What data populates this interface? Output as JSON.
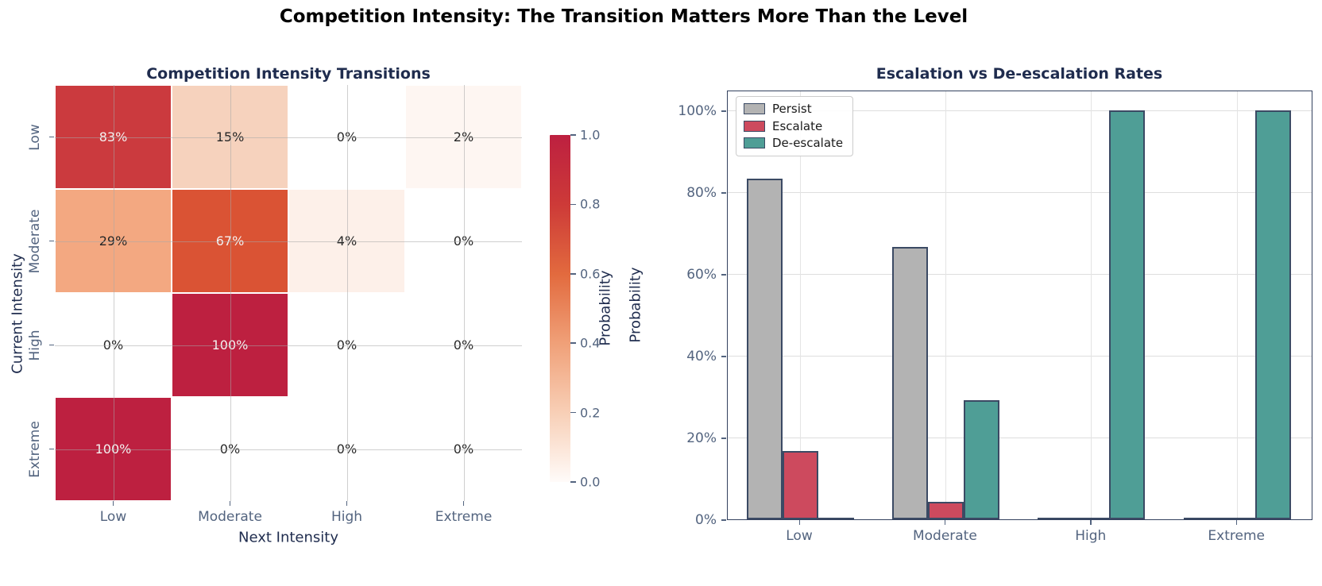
{
  "figure": {
    "title": "Competition Intensity: The Transition Matters More Than the Level"
  },
  "chart_data": [
    {
      "type": "heatmap",
      "title": "Competition Intensity Transitions",
      "xlabel": "Next Intensity",
      "ylabel": "Current Intensity",
      "x_categories": [
        "Low",
        "Moderate",
        "High",
        "Extreme"
      ],
      "y_categories": [
        "Low",
        "Moderate",
        "High",
        "Extreme"
      ],
      "values": [
        [
          0.83,
          0.15,
          0.0,
          0.02
        ],
        [
          0.29,
          0.67,
          0.04,
          0.0
        ],
        [
          0.0,
          1.0,
          0.0,
          0.0
        ],
        [
          1.0,
          0.0,
          0.0,
          0.0
        ]
      ],
      "labels": [
        [
          "83%",
          "15%",
          "0%",
          "2%"
        ],
        [
          "29%",
          "67%",
          "4%",
          "0%"
        ],
        [
          "0%",
          "100%",
          "0%",
          "0%"
        ],
        [
          "100%",
          "0%",
          "0%",
          "0%"
        ]
      ],
      "cell_colors": [
        [
          "#cb3a3e",
          "#f6d2bd",
          "#ffffff",
          "#fef6f2"
        ],
        [
          "#f3a881",
          "#da5334",
          "#fdf0e9",
          "#ffffff"
        ],
        [
          "#ffffff",
          "#bd2040",
          "#ffffff",
          "#ffffff"
        ],
        [
          "#bd2040",
          "#ffffff",
          "#ffffff",
          "#ffffff"
        ]
      ],
      "grid": true,
      "colorbar": {
        "label": "Probability",
        "ticks": [
          "1.0",
          "0.8",
          "0.6",
          "0.4",
          "0.2",
          "0.0"
        ],
        "range": [
          0.0,
          1.0
        ],
        "gradient_bottom_to_top": [
          "#fffbf9",
          "#f8cfb6",
          "#f0a078",
          "#e26a3e",
          "#cd3a38",
          "#bd2040"
        ]
      }
    },
    {
      "type": "bar",
      "title": "Escalation vs De-escalation Rates",
      "xlabel": "",
      "ylabel": "Probability",
      "categories": [
        "Low",
        "Moderate",
        "High",
        "Extreme"
      ],
      "series": [
        {
          "name": "Persist",
          "color": "#b3b3b3",
          "values": [
            0.833,
            0.667,
            0.0,
            0.0
          ]
        },
        {
          "name": "Escalate",
          "color": "#cd4a5e",
          "values": [
            0.167,
            0.042,
            0.0,
            0.0
          ]
        },
        {
          "name": "De-escalate",
          "color": "#4f9e96",
          "values": [
            0.0,
            0.292,
            1.0,
            1.0
          ]
        }
      ],
      "yticks": [
        {
          "value": 0.0,
          "label": "0%"
        },
        {
          "value": 0.2,
          "label": "20%"
        },
        {
          "value": 0.4,
          "label": "40%"
        },
        {
          "value": 0.6,
          "label": "60%"
        },
        {
          "value": 0.8,
          "label": "80%"
        },
        {
          "value": 1.0,
          "label": "100%"
        }
      ],
      "ylim": [
        0,
        1.05
      ],
      "grid": true,
      "legend_position": "upper left",
      "edge_color": "#3b4a64"
    }
  ]
}
